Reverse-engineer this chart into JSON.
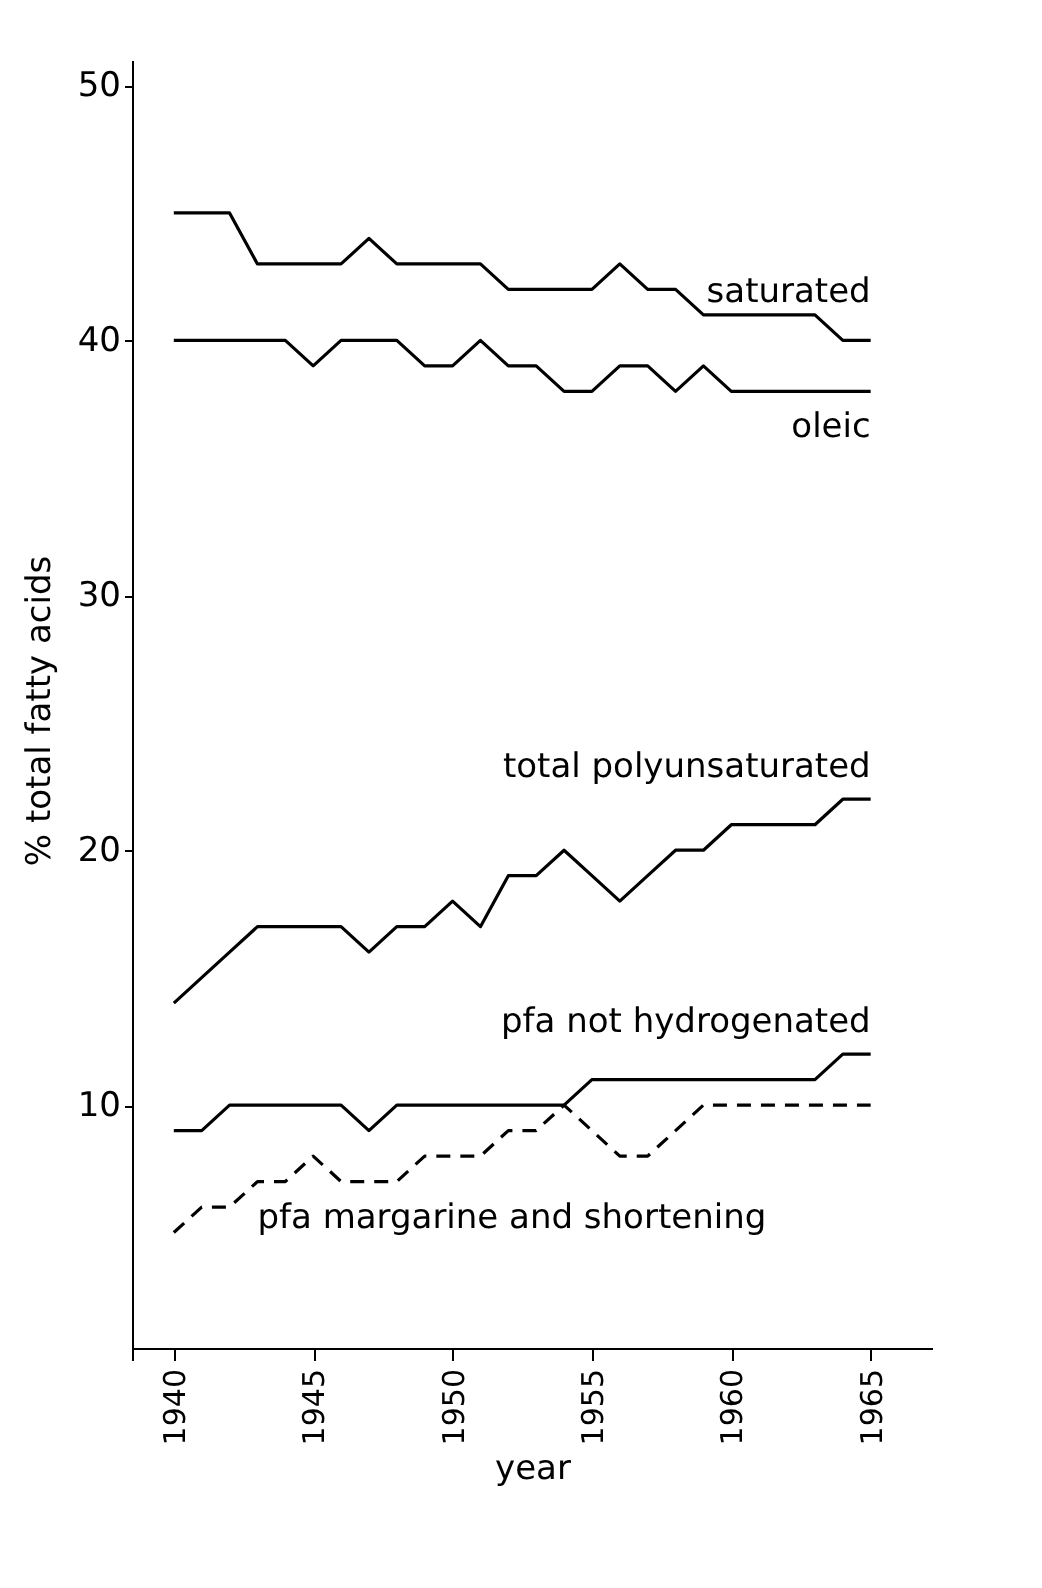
{
  "chart_data": {
    "type": "line",
    "xlabel": "year",
    "ylabel": "% total fatty acids",
    "x": [
      1940,
      1941,
      1942,
      1943,
      1944,
      1945,
      1946,
      1947,
      1948,
      1949,
      1950,
      1951,
      1952,
      1953,
      1954,
      1955,
      1956,
      1957,
      1958,
      1959,
      1960,
      1961,
      1962,
      1963,
      1964,
      1965
    ],
    "series": [
      {
        "name": "saturated",
        "color": "#000000",
        "values": [
          45,
          45,
          45,
          43,
          43,
          43,
          43,
          44,
          43,
          43,
          43,
          43,
          42,
          42,
          42,
          42,
          43,
          42,
          42,
          41,
          41,
          41,
          41,
          41,
          40,
          40
        ]
      },
      {
        "name": "oleic",
        "color": "#000000",
        "values": [
          40,
          40,
          40,
          40,
          40,
          39,
          40,
          40,
          40,
          39,
          39,
          40,
          39,
          39,
          38,
          38,
          39,
          39,
          38,
          39,
          38,
          38,
          38,
          38,
          38,
          38
        ]
      },
      {
        "name": "total polyunsaturated",
        "color": "#000000",
        "values": [
          14,
          15,
          16,
          17,
          17,
          17,
          17,
          16,
          17,
          17,
          18,
          17,
          19,
          19,
          20,
          19,
          18,
          19,
          20,
          20,
          21,
          21,
          21,
          21,
          22,
          22
        ]
      },
      {
        "name": "pfa not hydrogenated",
        "color": "#000000",
        "values": [
          9,
          9,
          10,
          10,
          10,
          10,
          10,
          9,
          10,
          10,
          10,
          10,
          10,
          10,
          10,
          11,
          11,
          11,
          11,
          11,
          11,
          11,
          11,
          11,
          12,
          12
        ]
      },
      {
        "name": "pfa  margarine and shortening",
        "color": "#000000",
        "line_style": "dashed",
        "values": [
          5,
          6,
          6,
          7,
          7,
          8,
          7,
          7,
          7,
          8,
          8,
          8,
          9,
          9,
          10,
          9,
          8,
          8,
          9,
          10,
          10,
          10,
          10,
          10,
          10,
          10
        ]
      }
    ],
    "xlim": [
      1938.5,
      1967.2
    ],
    "xticks": [
      1940,
      1945,
      1950,
      1955,
      1960,
      1965
    ],
    "ylim": [
      0,
      51
    ],
    "yticks": [
      10,
      20,
      30,
      40,
      50
    ],
    "grid": false,
    "legend": false,
    "marker": "none",
    "line_style": "solid"
  }
}
